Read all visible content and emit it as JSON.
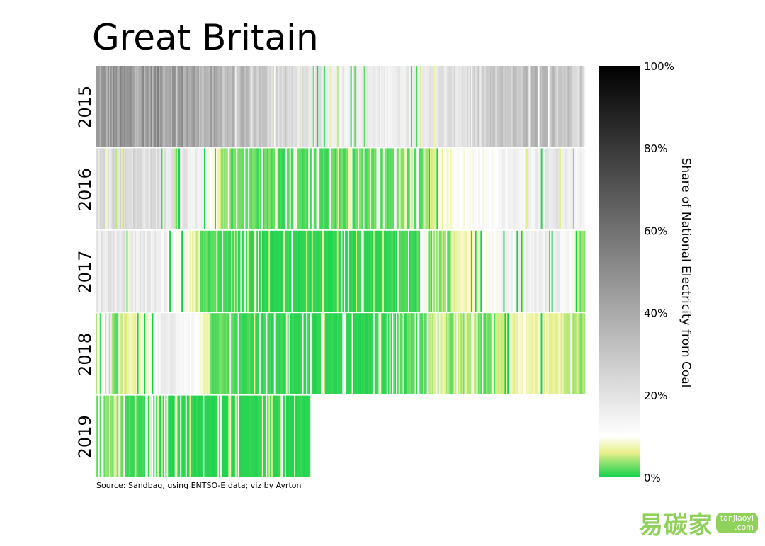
{
  "chart_data": {
    "type": "heatmap",
    "title": "Great Britain",
    "rows": [
      "2015",
      "2016",
      "2017",
      "2018",
      "2019"
    ],
    "x_unit": "day of year",
    "row_lengths": [
      365,
      366,
      365,
      365,
      160
    ],
    "value_unit": "Share of National Electricity from Coal (%)",
    "colorbar": {
      "label": "Share of National Electricity from Coal",
      "ticks": [
        "0%",
        "20%",
        "40%",
        "60%",
        "80%",
        "100%"
      ],
      "range": [
        0,
        100
      ],
      "stops": [
        {
          "v": 0,
          "color": "#12d14b"
        },
        {
          "v": 3,
          "color": "#7be06a"
        },
        {
          "v": 6,
          "color": "#e9f08a"
        },
        {
          "v": 10,
          "color": "#ffffff"
        },
        {
          "v": 100,
          "color": "#000000"
        }
      ]
    },
    "daily_profile_keypoints": {
      "2015": [
        [
          1,
          42
        ],
        [
          30,
          45
        ],
        [
          60,
          44
        ],
        [
          90,
          36
        ],
        [
          120,
          30
        ],
        [
          150,
          20
        ],
        [
          180,
          17
        ],
        [
          210,
          16
        ],
        [
          240,
          18
        ],
        [
          270,
          20
        ],
        [
          300,
          28
        ],
        [
          330,
          33
        ],
        [
          365,
          28
        ]
      ],
      "2016": [
        [
          1,
          22
        ],
        [
          20,
          24
        ],
        [
          40,
          22
        ],
        [
          60,
          20
        ],
        [
          80,
          14
        ],
        [
          95,
          5
        ],
        [
          110,
          3
        ],
        [
          130,
          3
        ],
        [
          150,
          2
        ],
        [
          170,
          2
        ],
        [
          190,
          3
        ],
        [
          210,
          3
        ],
        [
          230,
          3
        ],
        [
          250,
          6
        ],
        [
          270,
          10
        ],
        [
          290,
          12
        ],
        [
          320,
          15
        ],
        [
          345,
          18
        ],
        [
          366,
          14
        ]
      ],
      "2017": [
        [
          1,
          18
        ],
        [
          20,
          20
        ],
        [
          40,
          17
        ],
        [
          60,
          12
        ],
        [
          75,
          7
        ],
        [
          85,
          2
        ],
        [
          120,
          1
        ],
        [
          160,
          1
        ],
        [
          200,
          1
        ],
        [
          240,
          2
        ],
        [
          265,
          5
        ],
        [
          285,
          9
        ],
        [
          310,
          14
        ],
        [
          340,
          17
        ],
        [
          355,
          12
        ],
        [
          365,
          3
        ]
      ],
      "2018": [
        [
          1,
          4
        ],
        [
          20,
          5
        ],
        [
          40,
          10
        ],
        [
          55,
          17
        ],
        [
          75,
          12
        ],
        [
          90,
          3
        ],
        [
          110,
          2
        ],
        [
          150,
          1
        ],
        [
          200,
          1
        ],
        [
          230,
          2
        ],
        [
          260,
          6
        ],
        [
          290,
          5
        ],
        [
          320,
          8
        ],
        [
          345,
          7
        ],
        [
          365,
          4
        ]
      ],
      "2019": [
        [
          1,
          3
        ],
        [
          15,
          5
        ],
        [
          30,
          3
        ],
        [
          45,
          1
        ],
        [
          80,
          1
        ],
        [
          120,
          1
        ],
        [
          160,
          1
        ]
      ]
    }
  },
  "source_text": "Source: Sandbag, using ENTSO-E data; viz by Ayrton",
  "watermark": {
    "chinese": "易碳家",
    "badge_line1": "tanjiaoyi",
    "badge_line2": ".com"
  }
}
